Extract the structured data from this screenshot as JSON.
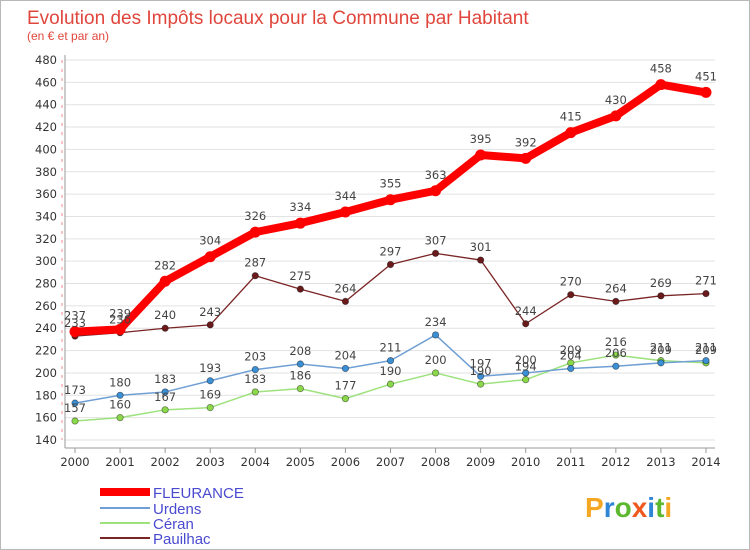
{
  "chart_data": {
    "type": "line",
    "title": "Evolution des Impôts locaux pour la Commune par Habitant",
    "subtitle": "(en € et par an)",
    "title_color": "#e0463c",
    "xlabel": "",
    "ylabel": "",
    "categories": [
      "2000",
      "2001",
      "2002",
      "2003",
      "2004",
      "2005",
      "2006",
      "2007",
      "2008",
      "2009",
      "2010",
      "2011",
      "2012",
      "2013",
      "2014"
    ],
    "ylim": [
      140,
      480
    ],
    "yticks": [
      140,
      160,
      180,
      200,
      220,
      240,
      260,
      280,
      300,
      320,
      340,
      360,
      380,
      400,
      420,
      440,
      460,
      480
    ],
    "grid": true,
    "legend_position": "bottom-left",
    "legend_text_color": "#4a4ad0",
    "series": [
      {
        "name": "FLEURANCE",
        "color": "#ff0000",
        "marker_color": "#ff0000",
        "values": [
          237,
          239,
          282,
          304,
          326,
          334,
          344,
          355,
          363,
          395,
          392,
          415,
          430,
          458,
          451
        ]
      },
      {
        "name": "Urdens",
        "color": "#6f9fd4",
        "marker_color": "#3b8fd4",
        "values": [
          173,
          180,
          183,
          193,
          203,
          208,
          204,
          211,
          234,
          197,
          200,
          204,
          206,
          209,
          211
        ]
      },
      {
        "name": "Céran",
        "color": "#9ee27e",
        "marker_color": "#8bd94a",
        "values": [
          157,
          160,
          167,
          169,
          183,
          186,
          177,
          190,
          200,
          190,
          194,
          209,
          216,
          211,
          209
        ]
      },
      {
        "name": "Pauilhac",
        "color": "#7a2424",
        "marker_color": "#6a1a1a",
        "values": [
          233,
          236,
          240,
          243,
          287,
          275,
          264,
          297,
          307,
          301,
          244,
          270,
          264,
          269,
          271
        ]
      }
    ]
  },
  "logo": {
    "text": "Proxiti",
    "letter_colors": [
      "#f5a623",
      "#2f86d6",
      "#5cb82e",
      "#ee5a1e",
      "#2f86d6",
      "#5cb82e",
      "#f5a623"
    ]
  }
}
